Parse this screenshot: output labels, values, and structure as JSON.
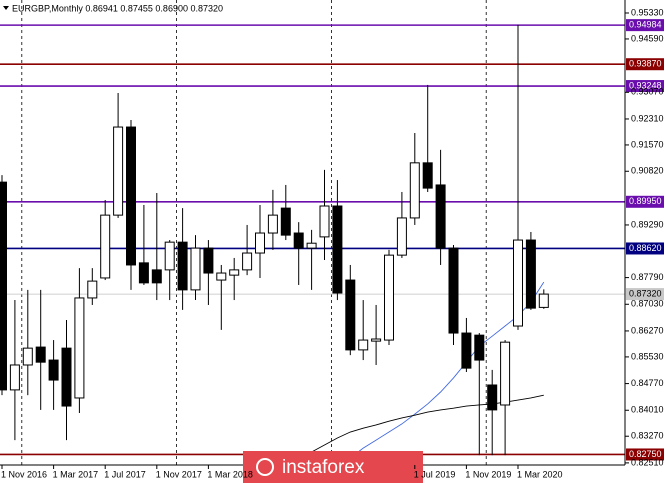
{
  "chart_data": {
    "type": "candlestick",
    "header": "EURGBP,Monthly 0.86941 0.87455 0.86900 0.87320",
    "categories": [
      "1 Nov 2016",
      null,
      null,
      null,
      "1 Mar 2017",
      null,
      null,
      null,
      "1 Jul 2017",
      null,
      null,
      null,
      "1 Nov 2017",
      null,
      null,
      null,
      "1 Mar 2018",
      null,
      null,
      null,
      null,
      null,
      null,
      null,
      null,
      null,
      null,
      null,
      null,
      null,
      null,
      null,
      "1 Jul 2019",
      null,
      null,
      null,
      "1 Nov 2019",
      null,
      null,
      null,
      "1 Mar 2020",
      null,
      null
    ],
    "open": [
      0.9051,
      0.8459,
      0.853,
      0.8581,
      0.8544,
      0.8578,
      0.8436,
      0.8721,
      0.8778,
      0.8957,
      0.9208,
      0.8821,
      0.8801,
      0.8801,
      0.888,
      0.8744,
      0.8863,
      0.8772,
      0.8786,
      0.8801,
      0.8849,
      0.8906,
      0.8977,
      0.8906,
      0.8863,
      0.8895,
      0.8983,
      0.8772,
      0.8573,
      0.8598,
      0.8601,
      0.8843,
      0.8949,
      0.9106,
      0.9043,
      0.8863,
      0.8621,
      0.8615,
      0.8473,
      0.8416,
      0.8641,
      0.8886,
      0.86941
    ],
    "high": [
      0.9071,
      0.8715,
      0.8744,
      0.8744,
      0.8601,
      0.8658,
      0.8806,
      0.8806,
      0.9,
      0.9305,
      0.9228,
      0.8986,
      0.902,
      0.8886,
      0.8977,
      0.89,
      0.8886,
      0.8815,
      0.8835,
      0.8929,
      0.8986,
      0.9029,
      0.9043,
      0.8937,
      0.8915,
      0.9086,
      0.9057,
      0.8815,
      0.8715,
      0.8701,
      0.8858,
      0.9023,
      0.9191,
      0.9328,
      0.9143,
      0.8872,
      0.8664,
      0.8621,
      0.8516,
      0.8601,
      0.9499,
      0.8909,
      0.87455
    ],
    "low": [
      0.8444,
      0.8316,
      0.8444,
      0.8402,
      0.8402,
      0.8316,
      0.8393,
      0.8701,
      0.8772,
      0.8949,
      0.8744,
      0.8758,
      0.8715,
      0.8715,
      0.8687,
      0.8715,
      0.8701,
      0.863,
      0.8715,
      0.8786,
      0.8778,
      0.8858,
      0.8886,
      0.8758,
      0.8744,
      0.8829,
      0.8715,
      0.8558,
      0.8544,
      0.853,
      0.8587,
      0.8835,
      0.8929,
      0.9023,
      0.8815,
      0.8587,
      0.851,
      0.8273,
      0.8273,
      0.8273,
      0.863,
      0.8687,
      0.869
    ],
    "close": [
      0.8459,
      0.853,
      0.8578,
      0.8538,
      0.8487,
      0.8413,
      0.8721,
      0.8769,
      0.8957,
      0.9208,
      0.8815,
      0.8764,
      0.8764,
      0.888,
      0.8744,
      0.8863,
      0.8792,
      0.8792,
      0.8801,
      0.8849,
      0.8906,
      0.8957,
      0.89,
      0.8863,
      0.8877,
      0.8983,
      0.8735,
      0.8573,
      0.8601,
      0.8604,
      0.8843,
      0.8949,
      0.9106,
      0.9034,
      0.8863,
      0.8621,
      0.8521,
      0.8544,
      0.8402,
      0.8595,
      0.8886,
      0.8692,
      0.8732
    ],
    "up_color": "#ffffff",
    "down_color": "#000000",
    "lines": [
      {
        "color": "#4169e1",
        "values": [
          null,
          null,
          null,
          null,
          null,
          null,
          null,
          null,
          null,
          null,
          null,
          null,
          null,
          null,
          null,
          null,
          null,
          null,
          null,
          null,
          null,
          null,
          null,
          null,
          null,
          null,
          null,
          0.8265,
          0.8293,
          0.8316,
          0.8339,
          0.8362,
          0.839,
          0.8419,
          0.8453,
          0.8493,
          0.8538,
          0.8584,
          0.8612,
          0.8641,
          0.867,
          0.8709,
          0.8766
        ]
      },
      {
        "color": "#000000",
        "values": [
          null,
          null,
          null,
          null,
          null,
          null,
          null,
          null,
          null,
          null,
          null,
          null,
          null,
          null,
          null,
          null,
          null,
          null,
          null,
          null,
          null,
          null,
          0.8251,
          0.8265,
          0.8282,
          0.8302,
          0.8322,
          0.8339,
          0.835,
          0.8359,
          0.837,
          0.8379,
          0.8387,
          0.8396,
          0.8402,
          0.8407,
          0.8413,
          0.8416,
          0.8419,
          0.8424,
          0.843,
          0.8436,
          0.8444
        ]
      }
    ],
    "levels": [
      {
        "price": 0.94984,
        "color": "#6a0dad"
      },
      {
        "price": {
          "value": 0.9387,
          "label": "0.93870"
        },
        "color": "#8b0000"
      },
      {
        "price": 0.93248,
        "color": "#6a0dad"
      },
      {
        "price": {
          "value": 0.8995,
          "label": "0.89950"
        },
        "color": "#6a0dad"
      },
      {
        "price": {
          "value": 0.8862,
          "label": "0.88620"
        },
        "color": "#000080"
      },
      {
        "price": {
          "value": 0.8275,
          "label": "0.82750"
        },
        "color": "#8b0000"
      }
    ],
    "current_price": {
      "value": 0.8732,
      "label": "0.87320"
    },
    "ylim": [
      0.8245,
      0.957
    ],
    "yticks": [
      {
        "value": 0.9533,
        "label": "0.95330"
      },
      {
        "value": 0.9459,
        "label": "0.94590"
      },
      {
        "value": 0.9307,
        "label": "0.93070"
      },
      {
        "value": 0.9231,
        "label": "0.92310"
      },
      {
        "value": 0.9157,
        "label": "0.91570"
      },
      {
        "value": 0.9082,
        "label": "0.90820"
      },
      {
        "value": 0.8929,
        "label": "0.89290"
      },
      {
        "value": 0.8779,
        "label": "0.87790"
      },
      {
        "value": 0.8703,
        "label": "0.87030"
      },
      {
        "value": 0.8627,
        "label": "0.86270"
      },
      {
        "value": 0.8553,
        "label": "0.85530"
      },
      {
        "value": 0.8477,
        "label": "0.84770"
      },
      {
        "value": 0.8401,
        "label": "0.84010"
      },
      {
        "value": 0.8327,
        "label": "0.83270"
      },
      {
        "value": 0.8251,
        "label": "0.82510"
      }
    ],
    "watermark": "instaforex"
  }
}
